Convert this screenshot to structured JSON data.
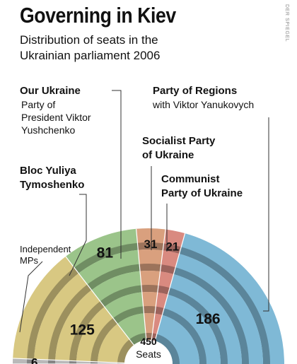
{
  "title": "Governing in Kiev",
  "subtitle": "Distribution of seats in the\nUkrainian parliament 2006",
  "credit": "DER SPIEGEL",
  "chart_data": {
    "type": "pie",
    "variant": "parliament-semicircle",
    "total_value": "450",
    "total_label": "Seats",
    "series": [
      {
        "name": "Independent MPs",
        "title": "",
        "detail": "Independent\nMPs",
        "value": 6,
        "color": "#b9b9b9"
      },
      {
        "name": "Bloc Yuliya Tymoshenko",
        "title": "Bloc Yuliya\nTymoshenko",
        "detail": "",
        "value": 125,
        "color": "#d8c882"
      },
      {
        "name": "Our Ukraine",
        "title": "Our Ukraine",
        "detail": "Party of\nPresident Viktor\nYushchenko",
        "value": 81,
        "color": "#9bc48a"
      },
      {
        "name": "Socialist Party of Ukraine",
        "title": "Socialist Party\nof Ukraine",
        "detail": "",
        "value": 31,
        "color": "#d9a07e"
      },
      {
        "name": "Communist Party of Ukraine",
        "title": "Communist\nParty of Ukraine",
        "detail": "",
        "value": 21,
        "color": "#d98a80"
      },
      {
        "name": "Party of Regions",
        "title": "Party of Regions",
        "detail": "with Viktor Yanukovych",
        "value": 186,
        "color": "#7fb9d6"
      }
    ]
  }
}
